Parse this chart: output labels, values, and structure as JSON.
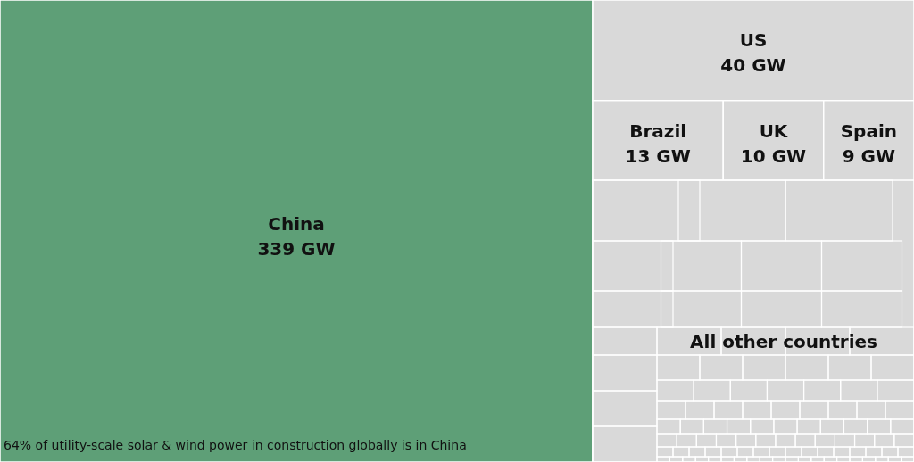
{
  "chart_data": {
    "type": "other",
    "categories": [
      "China",
      "US",
      "Brazil",
      "UK",
      "Spain",
      "All other countries"
    ],
    "values": [
      339,
      40,
      13,
      10,
      9,
      null
    ],
    "value_labels": [
      "339 GW",
      "40 GW",
      "13 GW",
      "10 GW",
      "9 GW",
      null
    ],
    "colors": [
      "#5e9f77",
      "#d9d9d9",
      "#d9d9d9",
      "#d9d9d9",
      "#d9d9d9",
      "#d9d9d9"
    ],
    "annotations": [
      "64% of utility-scale solar & wind power in construction globally is in China"
    ]
  }
}
